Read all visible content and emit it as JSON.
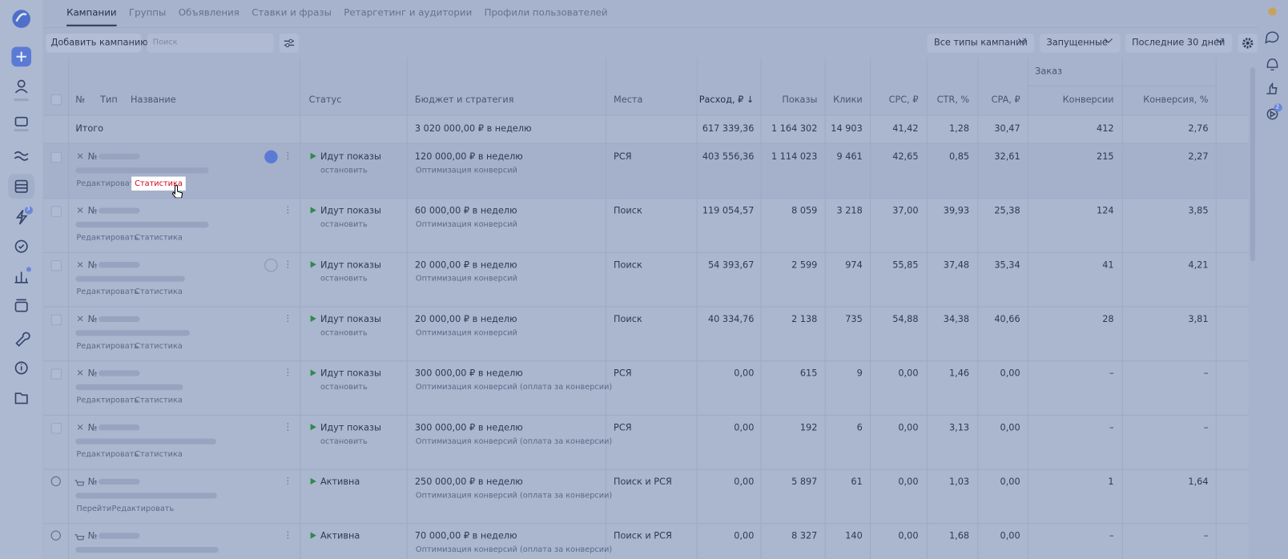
{
  "sidebar": {
    "badges": [
      "3",
      "2"
    ]
  },
  "tabs": [
    "Кампании",
    "Группы",
    "Объявления",
    "Ставки и фразы",
    "Ретаргетинг и аудитории",
    "Профили пользователей"
  ],
  "toolbar": {
    "add_button": "Добавить кампанию",
    "search_placeholder": "Поиск",
    "filters": [
      "Все типы кампаний",
      "Запущенные",
      "Последние 30 дней"
    ]
  },
  "table": {
    "group_header": "Заказ",
    "columns": [
      "№",
      "Тип",
      "Название",
      "Статус",
      "Бюджет и стратегия",
      "Места",
      "Расход, ₽ ↓",
      "Показы",
      "Клики",
      "CPC, ₽",
      "CTR, %",
      "CPA, ₽",
      "Конверсии",
      "Конверсия, %"
    ],
    "total": {
      "label": "Итого",
      "budget": "3 020 000,00 ₽ в неделю",
      "metrics": [
        "617 339,36",
        "1 164 302",
        "14 903",
        "41,42",
        "1,28",
        "30,47",
        "412",
        "2,76"
      ]
    },
    "rows": [
      {
        "number": "№",
        "status": "Идут показы",
        "status_action": "остановить",
        "budget": "120 000,00 ₽ в неделю",
        "strategy": "Оптимизация конверсий",
        "places": "РСЯ",
        "metrics": [
          "403 556,36",
          "1 114 023",
          "9 461",
          "42,65",
          "0,85",
          "32,61",
          "215",
          "2,27"
        ],
        "actions": [
          "Редактировать",
          "Статистика"
        ]
      },
      {
        "number": "№",
        "status": "Идут показы",
        "status_action": "остановить",
        "budget": "60 000,00 ₽ в неделю",
        "strategy": "Оптимизация конверсий",
        "places": "Поиск",
        "metrics": [
          "119 054,57",
          "8 059",
          "3 218",
          "37,00",
          "39,93",
          "25,38",
          "124",
          "3,85"
        ],
        "actions": [
          "Редактировать",
          "Статистика"
        ]
      },
      {
        "number": "№",
        "status": "Идут показы",
        "status_action": "остановить",
        "budget": "20 000,00 ₽ в неделю",
        "strategy": "Оптимизация конверсий",
        "places": "Поиск",
        "metrics": [
          "54 393,67",
          "2 599",
          "974",
          "55,85",
          "37,48",
          "35,34",
          "41",
          "4,21"
        ],
        "actions": [
          "Редактировать",
          "Статистика"
        ]
      },
      {
        "number": "№",
        "status": "Идут показы",
        "status_action": "остановить",
        "budget": "20 000,00 ₽ в неделю",
        "strategy": "Оптимизация конверсий",
        "places": "Поиск",
        "metrics": [
          "40 334,76",
          "2 138",
          "735",
          "54,88",
          "34,38",
          "40,66",
          "28",
          "3,81"
        ],
        "actions": [
          "Редактировать",
          "Статистика"
        ]
      },
      {
        "number": "№",
        "status": "Идут показы",
        "status_action": "остановить",
        "budget": "300 000,00 ₽ в неделю",
        "strategy": "Оптимизация конверсий (оплата за конверсии)",
        "places": "РСЯ",
        "metrics": [
          "0,00",
          "615",
          "9",
          "0,00",
          "1,46",
          "0,00",
          "–",
          "–"
        ],
        "actions": [
          "Редактировать",
          "Статистика"
        ]
      },
      {
        "number": "№",
        "status": "Идут показы",
        "status_action": "остановить",
        "budget": "300 000,00 ₽ в неделю",
        "strategy": "Оптимизация конверсий (оплата за конверсии)",
        "places": "РСЯ",
        "metrics": [
          "0,00",
          "192",
          "6",
          "0,00",
          "3,13",
          "0,00",
          "–",
          "–"
        ],
        "actions": [
          "Редактировать",
          "Статистика"
        ]
      },
      {
        "number": "№",
        "status": "Активна",
        "budget": "250 000,00 ₽ в неделю",
        "strategy": "Оптимизация конверсий (оплата за конверсии)",
        "places": "Поиск и РСЯ",
        "metrics": [
          "0,00",
          "5 897",
          "61",
          "0,00",
          "1,03",
          "0,00",
          "1",
          "1,64"
        ],
        "actions": [
          "Перейти",
          "Редактировать"
        ]
      },
      {
        "number": "№",
        "status": "Активна",
        "budget": "70 000,00 ₽ в неделю",
        "strategy": "Оптимизация конверсий (оплата за конверсии)",
        "places": "Поиск и РСЯ",
        "metrics": [
          "0,00",
          "8 327",
          "140",
          "0,00",
          "1,68",
          "0,00",
          "–",
          "–"
        ]
      }
    ]
  }
}
